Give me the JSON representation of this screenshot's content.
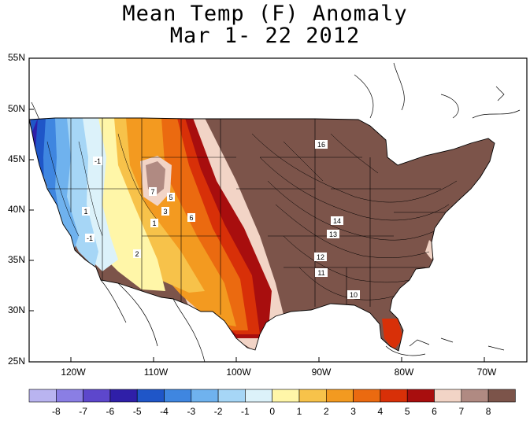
{
  "title": {
    "line1": "Mean Temp (F) Anomaly",
    "line2": "Mar 1- 22 2012"
  },
  "lat_labels": [
    "55N",
    "50N",
    "45N",
    "40N",
    "35N",
    "30N",
    "25N"
  ],
  "lon_labels": [
    "120W",
    "110W",
    "100W",
    "90W",
    "80W",
    "70W"
  ],
  "colorbar": {
    "labels": [
      "-8",
      "-7",
      "-6",
      "-5",
      "-4",
      "-3",
      "-2",
      "-1",
      "0",
      "1",
      "2",
      "3",
      "4",
      "5",
      "6",
      "7",
      "8"
    ],
    "colors": [
      "#b9b4f0",
      "#8a7ee4",
      "#5d47cc",
      "#2f1fa8",
      "#1f56c8",
      "#3f86e0",
      "#6fb2ee",
      "#a6d6f6",
      "#dcf2fa",
      "#fff6a8",
      "#f7c24a",
      "#f39a20",
      "#eb6a10",
      "#d83008",
      "#a80e0e",
      "#f2d4c6",
      "#b08a82",
      "#7c544a"
    ]
  },
  "contour_labels": [
    "-1",
    "-1",
    "1",
    "2",
    "3",
    "5",
    "6",
    "7",
    "1",
    "14",
    "13",
    "12",
    "11",
    "10",
    "16"
  ]
}
